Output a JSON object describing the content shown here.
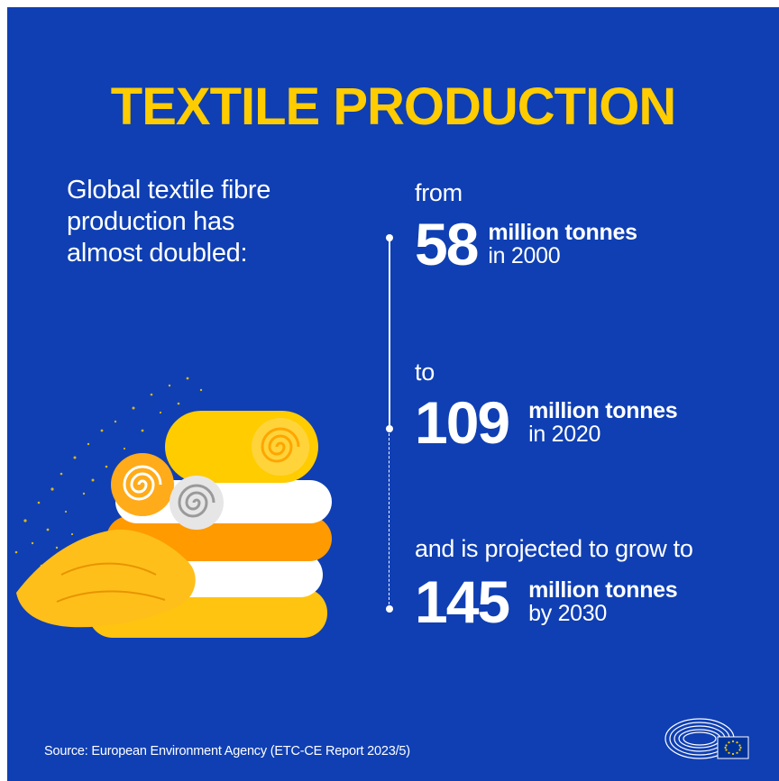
{
  "title": "TEXTILE PRODUCTION",
  "intro": {
    "line1": "Global textile fibre",
    "line2": "production has",
    "line3": "almost doubled:"
  },
  "stats": [
    {
      "lead": "from",
      "value": "58",
      "unit": "million tonnes",
      "period": "in 2000"
    },
    {
      "lead": "to",
      "value": "109",
      "unit": "million tonnes",
      "period": "in 2020"
    },
    {
      "lead": "and is projected to grow to",
      "value": "145",
      "unit": "million tonnes",
      "period": "by 2030"
    }
  ],
  "source": "Source: European Environment Agency (ETC-CE Report 2023/5)",
  "colors": {
    "background": "#0f3fb3",
    "accent_yellow": "#ffcc00",
    "accent_orange": "#ff9900",
    "text": "#ffffff"
  },
  "icons": {
    "illustration": "folded-towels-illustration",
    "logo": "european-parliament-logo"
  }
}
